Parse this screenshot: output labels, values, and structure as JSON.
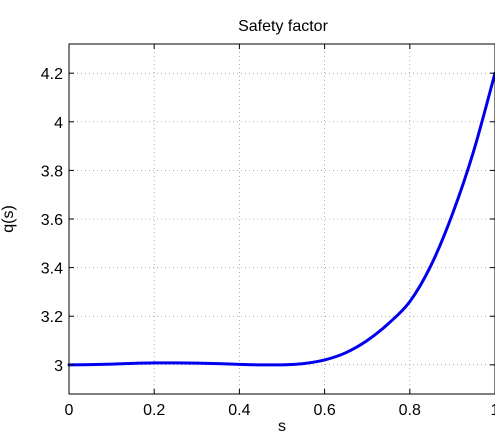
{
  "chart_data": {
    "type": "line",
    "title": "Safety factor",
    "xlabel": "s",
    "ylabel": "q(s)",
    "xlim": [
      0,
      1
    ],
    "ylim": [
      2.88,
      4.32
    ],
    "xticks": [
      0,
      0.2,
      0.4,
      0.6,
      0.8,
      1
    ],
    "xtick_labels": [
      "0",
      "0.2",
      "0.4",
      "0.6",
      "0.8",
      "1"
    ],
    "yticks": [
      3,
      3.2,
      3.4,
      3.6,
      3.8,
      4,
      4.2
    ],
    "ytick_labels": [
      "3",
      "3.2",
      "3.4",
      "3.6",
      "3.8",
      "4",
      "4.2"
    ],
    "grid": true,
    "series": [
      {
        "color": "#0000ee",
        "x": [
          0,
          0.05,
          0.1,
          0.15,
          0.2,
          0.25,
          0.3,
          0.35,
          0.4,
          0.45,
          0.5,
          0.55,
          0.6,
          0.65,
          0.7,
          0.75,
          0.8,
          0.85,
          0.9,
          0.95,
          1
        ],
        "y": [
          3.0,
          3.001,
          3.003,
          3.006,
          3.008,
          3.008,
          3.007,
          3.005,
          3.002,
          3.0,
          3.0,
          3.005,
          3.02,
          3.05,
          3.1,
          3.17,
          3.26,
          3.41,
          3.62,
          3.88,
          4.2
        ]
      }
    ]
  }
}
